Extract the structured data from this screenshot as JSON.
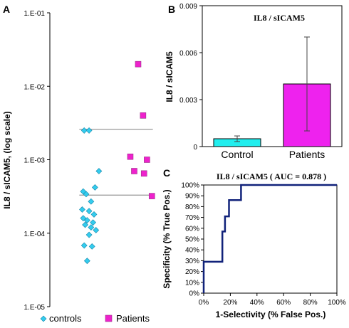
{
  "chart_data": [
    {
      "panel": "A",
      "type": "scatter",
      "title": "",
      "ylabel": "IL8 / sICAM5, (log scale)",
      "yscale": "log",
      "ylim": [
        1e-05,
        0.1
      ],
      "yticks": [
        "1.E-05",
        "1.E-04",
        "1.E-03",
        "1.E-02",
        "1.E-01"
      ],
      "legend_placement": "bottom",
      "colors": {
        "controls": "#33ccee",
        "Patients": "#ee22cc"
      },
      "series": [
        {
          "name": "controls",
          "marker": "diamond",
          "points": [
            [
              0.35,
              0.0025
            ],
            [
              0.4,
              0.0025
            ],
            [
              0.5,
              0.0007
            ],
            [
              0.34,
              0.00037
            ],
            [
              0.46,
              0.00042
            ],
            [
              0.37,
              0.00034
            ],
            [
              0.42,
              0.00027
            ],
            [
              0.33,
              0.00021
            ],
            [
              0.4,
              0.0002
            ],
            [
              0.45,
              0.00018
            ],
            [
              0.34,
              0.00016
            ],
            [
              0.38,
              0.00015
            ],
            [
              0.44,
              0.00014
            ],
            [
              0.36,
              0.00013
            ],
            [
              0.42,
              0.00012
            ],
            [
              0.47,
              0.00011
            ],
            [
              0.4,
              9.5e-05
            ],
            [
              0.35,
              6.8e-05
            ],
            [
              0.43,
              6.6e-05
            ],
            [
              0.38,
              4.2e-05
            ]
          ]
        },
        {
          "name": "Patients",
          "marker": "square",
          "points": [
            [
              0.9,
              0.02
            ],
            [
              0.95,
              0.004
            ],
            [
              0.82,
              0.0011
            ],
            [
              0.99,
              0.001
            ],
            [
              0.86,
              0.0007
            ],
            [
              0.96,
              0.00065
            ],
            [
              1.04,
              0.00032
            ]
          ]
        }
      ],
      "reference_lines": [
        0.0026,
        0.00033
      ]
    },
    {
      "panel": "B",
      "type": "bar",
      "title": "IL8 / sICAM5",
      "ylabel": "IL8 / sICAM5",
      "ylim": [
        0,
        0.009
      ],
      "yticks": [
        "0",
        "0.003",
        "0.006",
        "0.009"
      ],
      "categories": [
        "Control",
        "Patients"
      ],
      "values": [
        0.0005,
        0.004
      ],
      "errors": [
        0.00018,
        0.003
      ],
      "colors": [
        "#22eeee",
        "#ee22ee"
      ]
    },
    {
      "panel": "C",
      "type": "line",
      "title": "IL8 / sICAM5  ( AUC = 0.878 )",
      "xlabel": "1-Selectivity (% False Pos.)",
      "ylabel": "Specificity (% True Pos.)",
      "xlim": [
        0,
        100
      ],
      "ylim": [
        0,
        100
      ],
      "xticks": [
        "0%",
        "20%",
        "40%",
        "60%",
        "80%",
        "100%"
      ],
      "yticks": [
        "0%",
        "10%",
        "20%",
        "30%",
        "40%",
        "50%",
        "60%",
        "70%",
        "80%",
        "90%",
        "100%"
      ],
      "grid": false,
      "color": "#11227a",
      "x": [
        0,
        0,
        14,
        14,
        16,
        16,
        19,
        19,
        23,
        23,
        28,
        28,
        100
      ],
      "y": [
        0,
        29,
        29,
        57,
        57,
        71,
        71,
        86,
        86,
        86,
        86,
        100,
        100
      ]
    }
  ]
}
